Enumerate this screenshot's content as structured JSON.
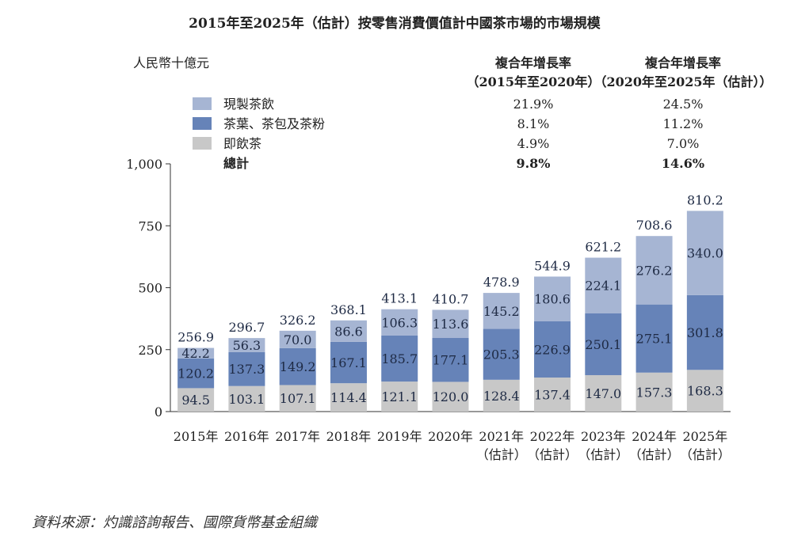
{
  "colors": {
    "rtd_tea": "#a6b5d3",
    "leaf_tea": "#6683b8",
    "instant_tea": "#c8c8c8",
    "axis": "#333333",
    "text": "#222222"
  },
  "chart_data": {
    "type": "bar",
    "stacked": true,
    "title": "2015年至2025年（估計）按零售消費價值計中國茶市場的市場規模",
    "ylabel": "人民幣十億元",
    "ylim": [
      0,
      1000
    ],
    "yticks": [
      "0",
      "250",
      "500",
      "750",
      "1,000"
    ],
    "ytick_values": [
      0,
      250,
      500,
      750,
      1000
    ],
    "categories": [
      {
        "line1": "2015年",
        "line2": ""
      },
      {
        "line1": "2016年",
        "line2": ""
      },
      {
        "line1": "2017年",
        "line2": ""
      },
      {
        "line1": "2018年",
        "line2": ""
      },
      {
        "line1": "2019年",
        "line2": ""
      },
      {
        "line1": "2020年",
        "line2": ""
      },
      {
        "line1": "2021年",
        "line2": "（估計）"
      },
      {
        "line1": "2022年",
        "line2": "（估計）"
      },
      {
        "line1": "2023年",
        "line2": "（估計）"
      },
      {
        "line1": "2024年",
        "line2": "（估計）"
      },
      {
        "line1": "2025年",
        "line2": "（估計）"
      }
    ],
    "series": [
      {
        "name": "即飲茶",
        "color_key": "instant_tea",
        "values": [
          94.5,
          103.1,
          107.1,
          114.4,
          121.1,
          120.0,
          128.4,
          137.4,
          147.0,
          157.3,
          168.3
        ],
        "labels": [
          "94.5",
          "103.1",
          "107.1",
          "114.4",
          "121.1",
          "120.0",
          "128.4",
          "137.4",
          "147.0",
          "157.3",
          "168.3"
        ]
      },
      {
        "name": "茶葉、茶包及茶粉",
        "color_key": "leaf_tea",
        "values": [
          120.2,
          137.3,
          149.2,
          167.1,
          185.7,
          177.1,
          205.3,
          226.9,
          250.1,
          275.1,
          301.8
        ],
        "labels": [
          "120.2",
          "137.3",
          "149.2",
          "167.1",
          "185.7",
          "177.1",
          "205.3",
          "226.9",
          "250.1",
          "275.1",
          "301.8"
        ]
      },
      {
        "name": "現製茶飲",
        "color_key": "rtd_tea",
        "values": [
          42.2,
          56.3,
          70.0,
          86.6,
          106.3,
          113.6,
          145.2,
          180.6,
          224.1,
          276.2,
          340.0
        ],
        "labels": [
          "42.2",
          "56.3",
          "70.0",
          "86.6",
          "106.3",
          "113.6",
          "145.2",
          "180.6",
          "224.1",
          "276.2",
          "340.0"
        ]
      }
    ],
    "totals": [
      256.9,
      296.7,
      326.2,
      368.1,
      413.1,
      410.7,
      478.9,
      544.9,
      621.2,
      708.6,
      810.2
    ],
    "total_labels": [
      "256.9",
      "296.7",
      "326.2",
      "368.1",
      "413.1",
      "410.7",
      "478.9",
      "544.9",
      "621.2",
      "708.6",
      "810.2"
    ],
    "cagr_table": {
      "header1": {
        "line1": "複合年增長率",
        "line2": "（2015年至2020年）"
      },
      "header2": {
        "line1": "複合年增長率",
        "line2": "（2020年至2025年（估計））"
      },
      "rows": [
        {
          "name": "現製茶飲",
          "color_key": "rtd_tea",
          "cagr1": "21.9%",
          "cagr2": "24.5%",
          "bold": false
        },
        {
          "name": "茶葉、茶包及茶粉",
          "color_key": "leaf_tea",
          "cagr1": "8.1%",
          "cagr2": "11.2%",
          "bold": false
        },
        {
          "name": "即飲茶",
          "color_key": "instant_tea",
          "cagr1": "4.9%",
          "cagr2": "7.0%",
          "bold": false
        },
        {
          "name": "總計",
          "color_key": "",
          "cagr1": "9.8%",
          "cagr2": "14.6%",
          "bold": true
        }
      ]
    }
  },
  "source": "資料來源：灼識諮詢報告、國際貨幣基金組織"
}
